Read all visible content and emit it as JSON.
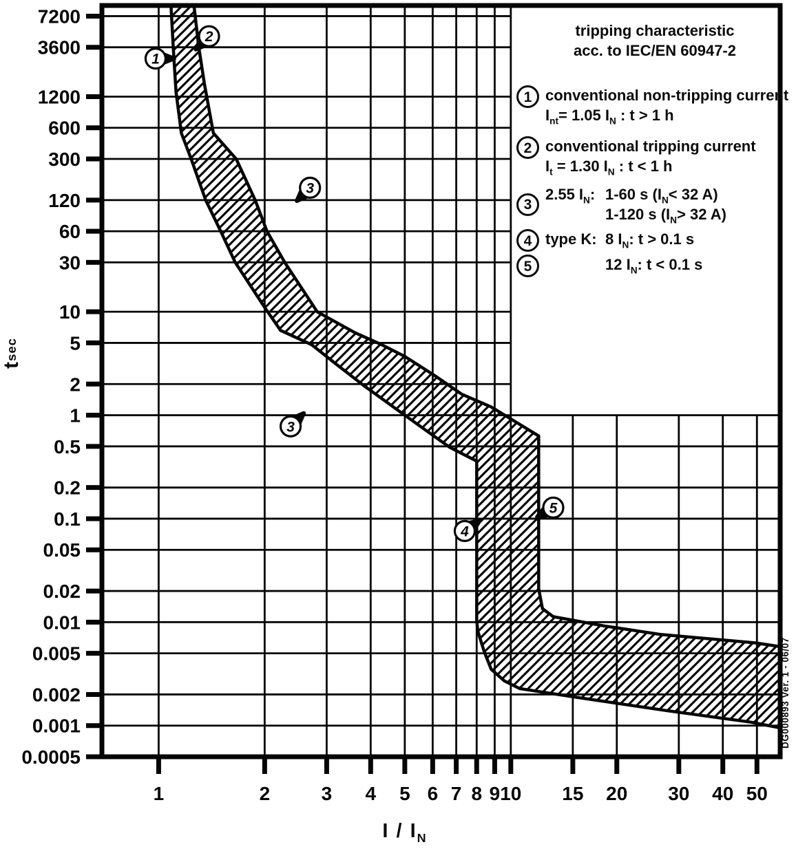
{
  "legend": {
    "title_line1": "tripping characteristic",
    "title_line2": "acc. to IEC/EN 60947-2",
    "items": [
      {
        "num": "1",
        "lines": [
          "conventional non-tripping current",
          "I[nt]= 1.05 I[N] : t > 1 h"
        ]
      },
      {
        "num": "2",
        "lines": [
          "conventional tripping current",
          "I[t] = 1.30 I[N] : t < 1 h"
        ]
      },
      {
        "num": "3",
        "prefix": "2.55 I[N]:",
        "lines": [
          "1-60 s (I[N]< 32 A)",
          "1-120 s (I[N]> 32 A)"
        ]
      },
      {
        "num": "4",
        "prefix": "type K:",
        "lines": [
          "8 I[N]: t > 0.1 s"
        ]
      },
      {
        "num": "5",
        "prefix": "",
        "lines": [
          "12 I[N]: t < 0.1 s"
        ]
      }
    ]
  },
  "axes": {
    "y_title": "t [sec]",
    "x_title": "I / I[N]"
  },
  "side_note": "DG000893 Ver. 1 - 06/07",
  "chart_data": {
    "type": "area",
    "title": "tripping characteristic acc. to IEC/EN 60947-2",
    "xlabel": "I / I_N (multiple of rated current, log scale)",
    "ylabel": "t [sec] (log scale)",
    "grid": true,
    "legend_position": "top-right",
    "x_axis": {
      "scale": "log",
      "min": 0.69,
      "max": 58.2,
      "ticks": [
        1,
        2,
        3,
        4,
        5,
        6,
        7,
        8,
        9,
        10,
        15,
        20,
        30,
        40,
        50
      ]
    },
    "y_axis": {
      "scale": "log",
      "min": 0.0005,
      "max": 9120,
      "ticks": [
        7200,
        3600,
        1200,
        600,
        300,
        120,
        60,
        30,
        10,
        5,
        2,
        1,
        0.5,
        0.2,
        0.1,
        0.05,
        0.02,
        0.01,
        0.005,
        0.002,
        0.001,
        0.0005
      ]
    },
    "band": {
      "description": "hatched tolerance band of trip curve; thermal zone between 1.05 and 1.30 I_N, instantaneous magnetic trip between 8 I_N (t>0.1s) and 12 I_N (t<0.1s)",
      "upper_boundary_x_t": [
        [
          1.26,
          9120
        ],
        [
          1.3,
          3600
        ],
        [
          1.35,
          1560
        ],
        [
          1.43,
          533
        ],
        [
          1.66,
          300
        ],
        [
          1.88,
          120
        ],
        [
          2.03,
          60
        ],
        [
          2.28,
          30
        ],
        [
          2.82,
          10
        ],
        [
          3.6,
          6.3
        ],
        [
          4.3,
          4.8
        ],
        [
          5.0,
          3.7
        ],
        [
          6.1,
          2.4
        ],
        [
          7.25,
          1.6
        ],
        [
          8.8,
          1.2
        ],
        [
          12,
          0.63
        ],
        [
          12,
          0.021
        ],
        [
          12.3,
          0.0135
        ],
        [
          13.2,
          0.0113
        ],
        [
          18.4,
          0.0092
        ],
        [
          26.7,
          0.0076
        ],
        [
          49.5,
          0.0063
        ],
        [
          58.2,
          0.0058
        ]
      ],
      "lower_boundary_x_t": [
        [
          1.084,
          9120
        ],
        [
          1.1,
          3600
        ],
        [
          1.12,
          1340
        ],
        [
          1.16,
          533
        ],
        [
          1.24,
          293
        ],
        [
          1.36,
          120
        ],
        [
          1.5,
          60
        ],
        [
          1.65,
          30
        ],
        [
          2.0,
          11
        ],
        [
          2.22,
          6.6
        ],
        [
          2.72,
          4.8
        ],
        [
          3.2,
          3.1
        ],
        [
          3.85,
          1.9
        ],
        [
          5.0,
          1.0
        ],
        [
          6.7,
          0.49
        ],
        [
          8.0,
          0.36
        ],
        [
          8.0,
          0.0104
        ],
        [
          8.06,
          0.0082
        ],
        [
          8.4,
          0.0052
        ],
        [
          8.8,
          0.0035
        ],
        [
          9.6,
          0.0027
        ],
        [
          10.6,
          0.00228
        ],
        [
          15,
          0.0019
        ],
        [
          27.6,
          0.0014
        ],
        [
          48,
          0.00108
        ],
        [
          58.2,
          0.00095
        ]
      ]
    },
    "markers": [
      {
        "label": "1",
        "x": 0.98,
        "t": 2800,
        "arrow_deg": 0
      },
      {
        "label": "2",
        "x": 1.39,
        "t": 4600,
        "arrow_deg": 135
      },
      {
        "label": "3",
        "x": 2.69,
        "t": 158,
        "arrow_deg": 135
      },
      {
        "label": "3",
        "x": 2.37,
        "t": 0.78,
        "arrow_deg": 315
      },
      {
        "label": "4",
        "x": 7.4,
        "t": 0.076,
        "arrow_deg": 325
      },
      {
        "label": "5",
        "x": 13.2,
        "t": 0.128,
        "arrow_deg": 150
      }
    ]
  }
}
